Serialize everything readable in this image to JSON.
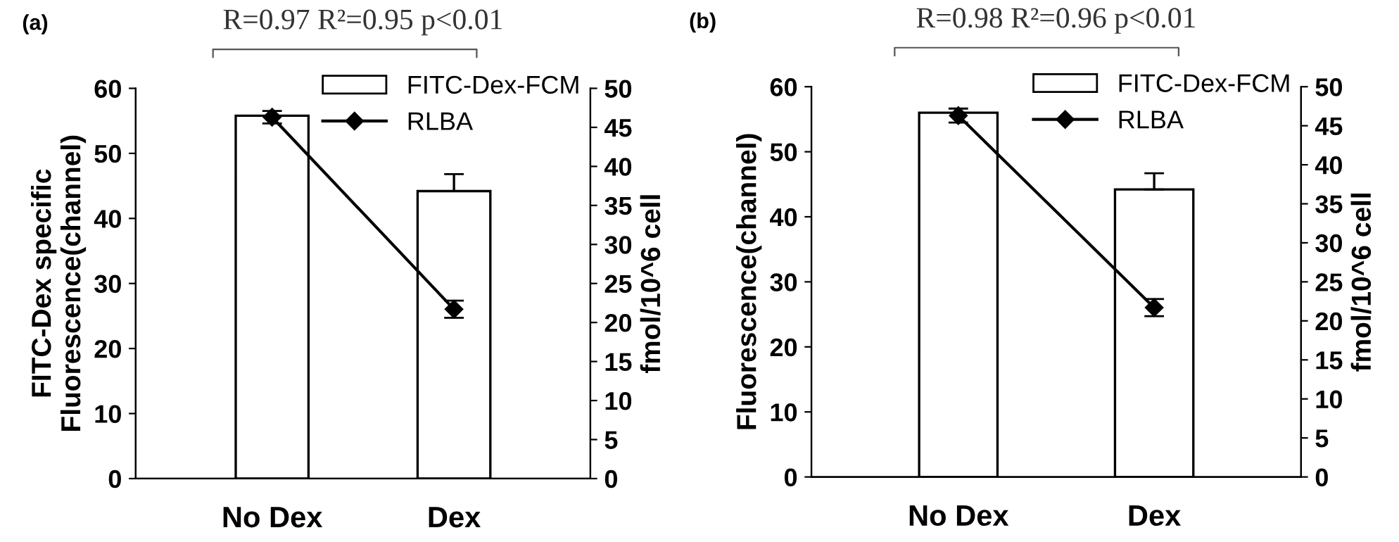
{
  "chart_data": [
    {
      "type": "bar",
      "title": "(a)",
      "ylabel": "FITC-Dex specific\nFluorescence(channel)",
      "y2label": "fmol/10^6 cell",
      "categories": [
        "No Dex",
        "Dex"
      ],
      "ylim": [
        0,
        60
      ],
      "yticks": [
        0,
        10,
        20,
        30,
        40,
        50,
        60
      ],
      "y2lim": [
        0,
        50
      ],
      "y2ticks": [
        0,
        5,
        10,
        15,
        20,
        25,
        30,
        35,
        40,
        45,
        50
      ],
      "annotations": [
        "R=0.97 R²=0.95 p<0.01"
      ],
      "legend": "top right",
      "grid": false,
      "series": [
        {
          "name": "FITC-Dex-FCM",
          "color": "#ffffff",
          "values": [
            55.8,
            44.2
          ],
          "errors": [
            null,
            2.6
          ]
        },
        {
          "name": "RLBA",
          "type": "line",
          "axis": "y2",
          "color": "#000000",
          "marker": "diamond",
          "line_style": "solid",
          "values": [
            46.3,
            21.7
          ],
          "errors": [
            0.8,
            1.1
          ]
        }
      ]
    },
    {
      "type": "bar",
      "title": "(b)",
      "ylabel": "Fluorescence(channel)",
      "y2label": "fmol/10^6 cell",
      "categories": [
        "No Dex",
        "Dex"
      ],
      "ylim": [
        0,
        60
      ],
      "yticks": [
        0,
        10,
        20,
        30,
        40,
        50,
        60
      ],
      "y2lim": [
        0,
        50
      ],
      "y2ticks": [
        0,
        5,
        10,
        15,
        20,
        25,
        30,
        35,
        40,
        45,
        50
      ],
      "annotations": [
        "R=0.98 R²=0.96 p<0.01"
      ],
      "legend": "top right",
      "grid": false,
      "series": [
        {
          "name": "FITC-Dex-FCM",
          "color": "#ffffff",
          "values": [
            56.0,
            44.2
          ],
          "errors": [
            null,
            2.5
          ]
        },
        {
          "name": "RLBA",
          "type": "line",
          "axis": "y2",
          "color": "#000000",
          "marker": "diamond",
          "line_style": "solid",
          "values": [
            46.3,
            21.7
          ],
          "errors": [
            0.9,
            1.1
          ]
        }
      ]
    }
  ]
}
